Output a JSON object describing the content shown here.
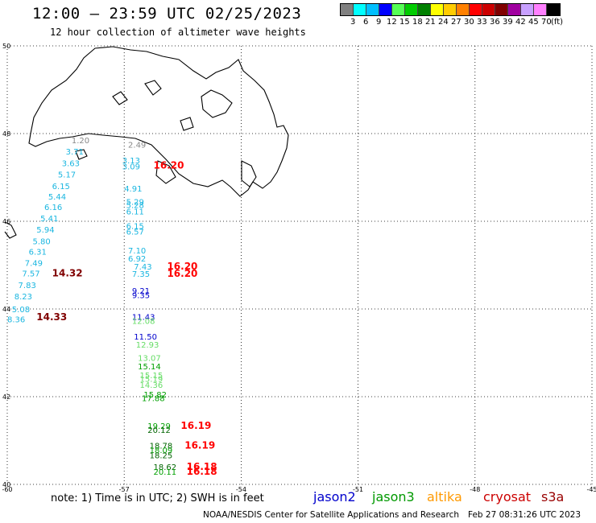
{
  "title": "12:00 – 23:59 UTC 02/25/2023",
  "subtitle": "12 hour collection of altimeter wave heights",
  "legend": {
    "colors": [
      "#808080",
      "#00ffff",
      "#00bfff",
      "#0000ff",
      "#55ff55",
      "#00cc00",
      "#008000",
      "#ffff00",
      "#ffcc00",
      "#ff8000",
      "#ff0000",
      "#cc0000",
      "#800000",
      "#a000a0",
      "#c8a0ff",
      "#ff80ff",
      "#000000"
    ],
    "labels": [
      "3",
      "6",
      "9",
      "12",
      "15",
      "18",
      "21",
      "24",
      "27",
      "30",
      "33",
      "36",
      "39",
      "42",
      "45",
      "70"
    ],
    "unit": "(ft)"
  },
  "axes": {
    "lat_labels": [
      "50",
      "48",
      "46",
      "44",
      "42",
      "40"
    ],
    "lon_labels": [
      "-60",
      "-57",
      "-54",
      "-51",
      "-48",
      "-45"
    ],
    "lat_range": [
      40,
      50
    ],
    "lon_range": [
      -60,
      -45
    ],
    "grid": true
  },
  "observations": [
    {
      "text": "1.20",
      "lat": 47.78,
      "lon": -58.35,
      "color": "#888888"
    },
    {
      "text": "3.71",
      "lat": 47.52,
      "lon": -58.5,
      "color": "#1ab6e0"
    },
    {
      "text": "3.63",
      "lat": 47.26,
      "lon": -58.6,
      "color": "#1ab6e0"
    },
    {
      "text": "5.17",
      "lat": 47.0,
      "lon": -58.7,
      "color": "#1ab6e0"
    },
    {
      "text": "6.15",
      "lat": 46.73,
      "lon": -58.85,
      "color": "#1ab6e0"
    },
    {
      "text": "5.44",
      "lat": 46.5,
      "lon": -58.95,
      "color": "#1ab6e0"
    },
    {
      "text": "6.16",
      "lat": 46.26,
      "lon": -59.05,
      "color": "#1ab6e0"
    },
    {
      "text": "5.41",
      "lat": 46.0,
      "lon": -59.15,
      "color": "#1ab6e0"
    },
    {
      "text": "5.94",
      "lat": 45.74,
      "lon": -59.25,
      "color": "#1ab6e0"
    },
    {
      "text": "5.80",
      "lat": 45.48,
      "lon": -59.35,
      "color": "#1ab6e0"
    },
    {
      "text": "6.31",
      "lat": 45.24,
      "lon": -59.45,
      "color": "#1ab6e0"
    },
    {
      "text": "7.49",
      "lat": 44.98,
      "lon": -59.55,
      "color": "#1ab6e0"
    },
    {
      "text": "7.57",
      "lat": 44.74,
      "lon": -59.62,
      "color": "#1ab6e0"
    },
    {
      "text": "7.83",
      "lat": 44.48,
      "lon": -59.72,
      "color": "#1ab6e0"
    },
    {
      "text": "8.23",
      "lat": 44.22,
      "lon": -59.82,
      "color": "#1ab6e0"
    },
    {
      "text": "5.08",
      "lat": 43.93,
      "lon": -59.88,
      "color": "#1ab6e0"
    },
    {
      "text": "8.36",
      "lat": 43.7,
      "lon": -60.0,
      "color": "#1ab6e0"
    },
    {
      "text": "14.32",
      "lat": 44.74,
      "lon": -58.85,
      "color": "#800000",
      "bold": true
    },
    {
      "text": "14.33",
      "lat": 43.74,
      "lon": -59.25,
      "color": "#800000",
      "bold": true
    },
    {
      "text": "2.49",
      "lat": 47.68,
      "lon": -56.9,
      "color": "#888888"
    },
    {
      "text": "3.13",
      "lat": 47.32,
      "lon": -57.05,
      "color": "#1ab6e0"
    },
    {
      "text": "3.09",
      "lat": 47.18,
      "lon": -57.05,
      "color": "#1ab6e0"
    },
    {
      "text": "16.20",
      "lat": 47.2,
      "lon": -56.25,
      "color": "#ff0000",
      "bold": true
    },
    {
      "text": "4.91",
      "lat": 46.68,
      "lon": -57.0,
      "color": "#1ab6e0"
    },
    {
      "text": "5.29",
      "lat": 46.38,
      "lon": -56.95,
      "color": "#1ab6e0"
    },
    {
      "text": "5.28",
      "lat": 46.3,
      "lon": -56.95,
      "color": "#1ab6e0"
    },
    {
      "text": "6.11",
      "lat": 46.16,
      "lon": -56.95,
      "color": "#1ab6e0"
    },
    {
      "text": "6.15",
      "lat": 45.83,
      "lon": -56.95,
      "color": "#1ab6e0"
    },
    {
      "text": "6.57",
      "lat": 45.7,
      "lon": -56.95,
      "color": "#1ab6e0"
    },
    {
      "text": "7.10",
      "lat": 45.27,
      "lon": -56.9,
      "color": "#1ab6e0"
    },
    {
      "text": "6.92",
      "lat": 45.08,
      "lon": -56.9,
      "color": "#1ab6e0"
    },
    {
      "text": "7.43",
      "lat": 44.9,
      "lon": -56.75,
      "color": "#1ab6e0"
    },
    {
      "text": "7.35",
      "lat": 44.73,
      "lon": -56.8,
      "color": "#1ab6e0"
    },
    {
      "text": "16.20",
      "lat": 44.9,
      "lon": -55.9,
      "color": "#ff0000",
      "bold": true
    },
    {
      "text": "16.20",
      "lat": 44.73,
      "lon": -55.9,
      "color": "#ff0000",
      "bold": true
    },
    {
      "text": "9.21",
      "lat": 44.35,
      "lon": -56.8,
      "color": "#0000cc"
    },
    {
      "text": "9.35",
      "lat": 44.25,
      "lon": -56.8,
      "color": "#0000cc"
    },
    {
      "text": "11.43",
      "lat": 43.75,
      "lon": -56.8,
      "color": "#0000cc"
    },
    {
      "text": "12.08",
      "lat": 43.66,
      "lon": -56.8,
      "color": "#66dd66"
    },
    {
      "text": "11.50",
      "lat": 43.3,
      "lon": -56.75,
      "color": "#0000cc"
    },
    {
      "text": "12.93",
      "lat": 43.12,
      "lon": -56.7,
      "color": "#66dd66"
    },
    {
      "text": "13.07",
      "lat": 42.82,
      "lon": -56.65,
      "color": "#66dd66"
    },
    {
      "text": "15.14",
      "lat": 42.62,
      "lon": -56.65,
      "color": "#00a000"
    },
    {
      "text": "15.15",
      "lat": 42.42,
      "lon": -56.6,
      "color": "#66dd66"
    },
    {
      "text": "15.19",
      "lat": 42.34,
      "lon": -56.6,
      "color": "#66dd66"
    },
    {
      "text": "14.36",
      "lat": 42.2,
      "lon": -56.6,
      "color": "#66dd66"
    },
    {
      "text": "15.82",
      "lat": 41.98,
      "lon": -56.5,
      "color": "#00a000"
    },
    {
      "text": "17.88",
      "lat": 41.9,
      "lon": -56.55,
      "color": "#00a000"
    },
    {
      "text": "19.29",
      "lat": 41.27,
      "lon": -56.4,
      "color": "#00a000"
    },
    {
      "text": "20.12",
      "lat": 41.17,
      "lon": -56.4,
      "color": "#006400"
    },
    {
      "text": "16.19",
      "lat": 41.27,
      "lon": -55.55,
      "color": "#ff0000",
      "bold": true
    },
    {
      "text": "18.78",
      "lat": 40.82,
      "lon": -56.35,
      "color": "#006400"
    },
    {
      "text": "18.09",
      "lat": 40.72,
      "lon": -56.35,
      "color": "#00a000"
    },
    {
      "text": "18.25",
      "lat": 40.6,
      "lon": -56.35,
      "color": "#006400"
    },
    {
      "text": "16.19",
      "lat": 40.82,
      "lon": -55.45,
      "color": "#ff0000",
      "bold": true
    },
    {
      "text": "18.62",
      "lat": 40.33,
      "lon": -56.25,
      "color": "#006400"
    },
    {
      "text": "20.11",
      "lat": 40.22,
      "lon": -56.25,
      "color": "#00a000"
    },
    {
      "text": "16.18",
      "lat": 40.33,
      "lon": -55.4,
      "color": "#ff0000",
      "bold": true
    },
    {
      "text": "16.18",
      "lat": 40.22,
      "lon": -55.4,
      "color": "#ff0000",
      "bold": true
    }
  ],
  "footer": {
    "note": "note: 1) Time is in UTC; 2) SWH is in feet",
    "missions": [
      {
        "name": "jason2",
        "color": "#0000cc"
      },
      {
        "name": "jason3",
        "color": "#009900"
      },
      {
        "name": "altika",
        "color": "#ff9900"
      },
      {
        "name": "cryosat",
        "color": "#cc0000"
      },
      {
        "name": "s3a",
        "color": "#990000"
      }
    ],
    "credit": "NOAA/NESDIS Center for Satellite Applications and Research",
    "timestamp": "Feb 27 08:31:26 UTC 2023"
  }
}
